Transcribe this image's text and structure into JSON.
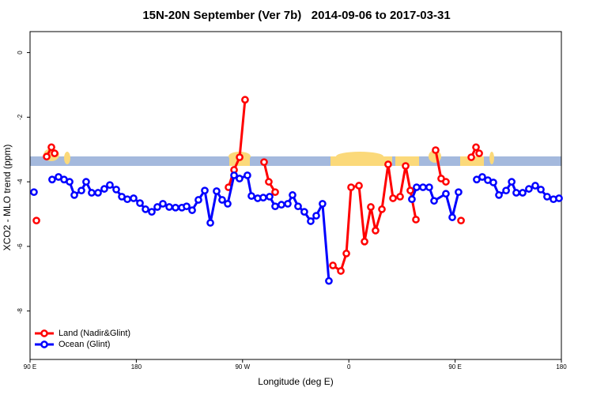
{
  "chart_data": {
    "type": "line",
    "title": "15N-20N September (Ver 7b)   2014-09-06 to 2017-03-31",
    "x_label": "Longitude (deg E)",
    "y_label": "XCO2 - MLO trend (ppm)",
    "xlim": [
      90,
      540
    ],
    "ylim": [
      -9.5,
      0.65
    ],
    "xticks": [
      {
        "value": 90,
        "label": "90 E"
      },
      180,
      {
        "value": 270,
        "label": "90 W"
      },
      {
        "value": 360,
        "label": "0"
      },
      {
        "value": 450,
        "label": "90 E"
      },
      {
        "value": 540,
        "label": "180"
      }
    ],
    "yticks": [
      0,
      -2,
      -4,
      -6,
      -8
    ],
    "grid": false,
    "legend": "bottom-left",
    "series": [
      {
        "name": "Land (Nadir&Glint)",
        "color": "#ff0000",
        "x": [
          95.4,
          null,
          104.1,
          108.1,
          110.8,
          null,
          258.1,
          262.8,
          267.5,
          272.1,
          null,
          288.2,
          292.2,
          297.6,
          null,
          346.5,
          353.2,
          357.9,
          361.9,
          368.6,
          373.3,
          378.6,
          382.6,
          388.0,
          393.3,
          397.4,
          403.4,
          408.1,
          412.1,
          416.8,
          null,
          433.5,
          438.2,
          442.2,
          null,
          455.0,
          null,
          463.7,
          467.7,
          470.4
        ],
        "values": [
          -5.2,
          null,
          -3.22,
          -2.93,
          -3.12,
          null,
          -4.17,
          -3.63,
          -3.24,
          -1.46,
          null,
          -3.39,
          -4.0,
          -4.32,
          null,
          -6.59,
          -6.76,
          -6.22,
          -4.17,
          -4.12,
          -5.85,
          -4.78,
          -5.51,
          -4.85,
          -3.46,
          -4.51,
          -4.46,
          -3.51,
          -4.27,
          -5.17,
          null,
          -3.02,
          -3.9,
          -4.0,
          null,
          -5.2,
          null,
          -3.24,
          -2.93,
          -3.12
        ]
      },
      {
        "name": "Ocean (Glint)",
        "color": "#0000ff",
        "x": [
          93.3,
          null,
          108.7,
          114.1,
          118.8,
          123.5,
          127.5,
          133.5,
          137.5,
          142.2,
          147.6,
          152.9,
          157.6,
          163.0,
          167.7,
          172.4,
          177.7,
          183.1,
          187.8,
          193.1,
          197.8,
          202.5,
          207.9,
          213.2,
          218.6,
          222.6,
          227.3,
          232.6,
          238.0,
          242.7,
          248.0,
          252.7,
          257.4,
          262.8,
          267.4,
          274.1,
          277.5,
          282.8,
          287.5,
          292.9,
          297.6,
          302.9,
          308.3,
          312.3,
          317.0,
          322.3,
          327.7,
          332.4,
          337.7,
          343.1,
          null,
          413.4,
          417.4,
          422.8,
          428.1,
          432.2,
          442.2,
          447.6,
          452.9,
          null,
          468.3,
          473.0,
          477.7,
          482.4,
          487.1,
          493.2,
          497.9,
          501.8,
          507.2,
          512.5,
          517.9,
          522.6,
          527.9,
          533.3,
          538.0
        ],
        "values": [
          -4.32,
          null,
          -3.93,
          -3.85,
          -3.93,
          -4.0,
          -4.41,
          -4.27,
          -4.0,
          -4.34,
          -4.34,
          -4.22,
          -4.1,
          -4.24,
          -4.46,
          -4.54,
          -4.51,
          -4.66,
          -4.85,
          -4.93,
          -4.78,
          -4.68,
          -4.78,
          -4.8,
          -4.8,
          -4.76,
          -4.88,
          -4.56,
          -4.27,
          -5.27,
          -4.29,
          -4.56,
          -4.68,
          -3.8,
          -3.9,
          -3.8,
          -4.44,
          -4.51,
          -4.49,
          -4.46,
          -4.76,
          -4.71,
          -4.68,
          -4.41,
          -4.76,
          -4.93,
          -5.22,
          -5.05,
          -4.68,
          -7.07,
          null,
          -4.54,
          -4.17,
          -4.17,
          -4.17,
          -4.59,
          -4.37,
          -5.1,
          -4.32,
          null,
          -3.93,
          -3.85,
          -3.95,
          -4.02,
          -4.41,
          -4.27,
          -4.0,
          -4.34,
          -4.34,
          -4.22,
          -4.12,
          -4.24,
          -4.46,
          -4.54,
          -4.51
        ]
      }
    ]
  }
}
